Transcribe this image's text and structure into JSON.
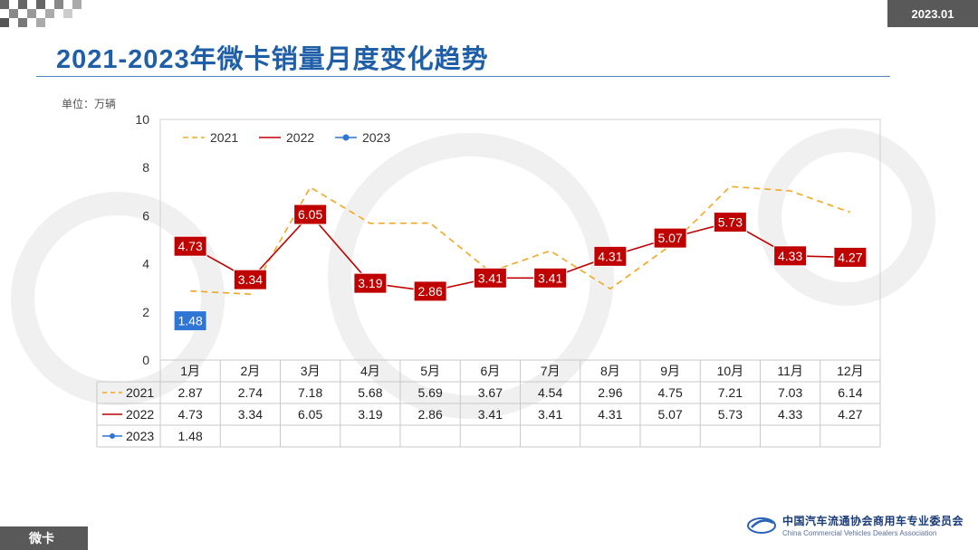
{
  "header": {
    "date_badge": "2023.01"
  },
  "title": "2021-2023年微卡销量月度变化趋势",
  "unit_label": "单位：万辆",
  "footer": {
    "category": "微卡",
    "org_cn": "中国汽车流通协会商用车专业委员会",
    "org_en": "China Commercial Vehicles Dealers Association"
  },
  "chart_data": {
    "type": "line",
    "categories": [
      "1月",
      "2月",
      "3月",
      "4月",
      "5月",
      "6月",
      "7月",
      "8月",
      "9月",
      "10月",
      "11月",
      "12月"
    ],
    "ylim": [
      0,
      10
    ],
    "yticks": [
      0,
      2,
      4,
      6,
      8,
      10
    ],
    "legend_position": "top-left",
    "series": [
      {
        "name": "2021",
        "color": "#f5a623",
        "style": "dashed",
        "values": [
          2.87,
          2.74,
          7.18,
          5.68,
          5.69,
          3.67,
          4.54,
          2.96,
          4.75,
          7.21,
          7.03,
          6.14
        ],
        "labels": [
          "2.87",
          "2.74",
          "7.18",
          "5.68",
          "5.69",
          "3.67",
          "4.54",
          "2.96",
          "4.75",
          "7.21",
          "7.03",
          "6.14"
        ]
      },
      {
        "name": "2022",
        "color": "#c00000",
        "style": "solid",
        "values": [
          4.73,
          3.34,
          6.05,
          3.19,
          2.86,
          3.41,
          3.41,
          4.31,
          5.07,
          5.73,
          4.33,
          4.27
        ],
        "labels": [
          "4.73",
          "3.34",
          "6.05",
          "3.19",
          "2.86",
          "3.41",
          "3.41",
          "4.31",
          "5.07",
          "5.73",
          "4.33",
          "4.27"
        ]
      },
      {
        "name": "2023",
        "color": "#2e75d6",
        "style": "marker",
        "values": [
          1.48,
          null,
          null,
          null,
          null,
          null,
          null,
          null,
          null,
          null,
          null,
          null
        ],
        "labels": [
          "1.48",
          "",
          "",
          "",
          "",
          "",
          "",
          "",
          "",
          "",
          "",
          ""
        ]
      }
    ]
  }
}
